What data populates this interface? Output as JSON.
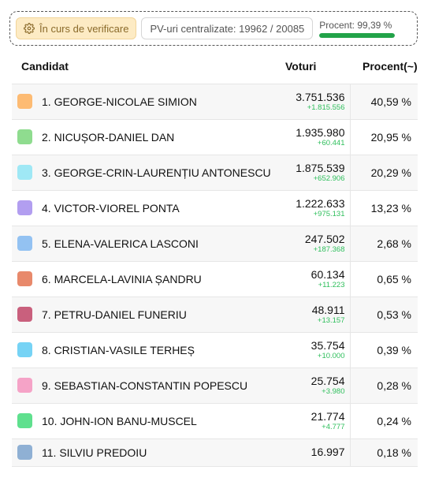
{
  "status": {
    "verification_label": "În curs de verificare",
    "verification_icon": "gear-icon",
    "pv_label": "PV-uri centralizate: 19962 / 20085",
    "progress_label": "Procent: 99,39 %",
    "progress_fraction": 0.9939,
    "progress_color": "#22a349"
  },
  "table": {
    "headers": {
      "candidate": "Candidat",
      "votes": "Voturi",
      "percent": "Procent(~)"
    },
    "rows": [
      {
        "name": "1. GEORGE-NICOLAE SIMION",
        "votes": "3.751.536",
        "delta": "+1.815.556",
        "percent": "40,59 %",
        "color": "#fdbb73"
      },
      {
        "name": "2. NICUȘOR-DANIEL DAN",
        "votes": "1.935.980",
        "delta": "+60.441",
        "percent": "20,95 %",
        "color": "#8fdc8f"
      },
      {
        "name": "3. GEORGE-CRIN-LAURENȚIU ANTONESCU",
        "votes": "1.875.539",
        "delta": "+652.906",
        "percent": "20,29 %",
        "color": "#9fe8f5"
      },
      {
        "name": "4. VICTOR-VIOREL PONTA",
        "votes": "1.222.633",
        "delta": "+975.131",
        "percent": "13,23 %",
        "color": "#b29ef0"
      },
      {
        "name": "5. ELENA-VALERICA LASCONI",
        "votes": "247.502",
        "delta": "+187.368",
        "percent": "2,68 %",
        "color": "#93c2f2"
      },
      {
        "name": "6. MARCELA-LAVINIA ȘANDRU",
        "votes": "60.134",
        "delta": "+11.223",
        "percent": "0,65 %",
        "color": "#e8896b"
      },
      {
        "name": "7. PETRU-DANIEL FUNERIU",
        "votes": "48.911",
        "delta": "+13.157",
        "percent": "0,53 %",
        "color": "#c9607d"
      },
      {
        "name": "8. CRISTIAN-VASILE TERHEȘ",
        "votes": "35.754",
        "delta": "+10.000",
        "percent": "0,39 %",
        "color": "#76d3f5"
      },
      {
        "name": "9. SEBASTIAN-CONSTANTIN POPESCU",
        "votes": "25.754",
        "delta": "+3.980",
        "percent": "0,28 %",
        "color": "#f5a3c7"
      },
      {
        "name": "10. JOHN-ION BANU-MUSCEL",
        "votes": "21.774",
        "delta": "+4.777",
        "percent": "0,24 %",
        "color": "#5fe08e"
      },
      {
        "name": "11. SILVIU PREDOIU",
        "votes": "16.997",
        "delta": "",
        "percent": "0,18 %",
        "color": "#8fb0d4"
      }
    ]
  }
}
